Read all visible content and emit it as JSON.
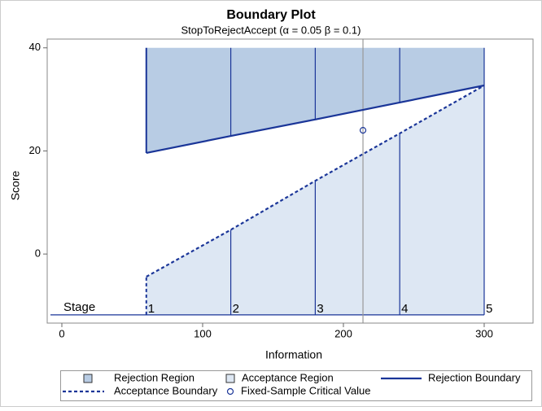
{
  "chart_data": {
    "type": "boundary",
    "title": "Boundary Plot",
    "subtitle": "StopToRejectAccept (α = 0.05  β = 0.1)",
    "xlabel": "Information",
    "ylabel": "Score",
    "xlim": [
      -10.4,
      334.7
    ],
    "ylim": [
      -13.4,
      41.7
    ],
    "xticks": [
      0,
      100,
      200,
      300
    ],
    "yticks": [
      0,
      20,
      40
    ],
    "x": [
      60,
      120,
      180,
      240,
      300
    ],
    "stage_label": "Stage",
    "stages": [
      "1",
      "2",
      "3",
      "4",
      "5"
    ],
    "stage_y": -11.8,
    "regions": [
      {
        "name": "Rejection Region",
        "color": "#b8cce4"
      },
      {
        "name": "Acceptance Region",
        "color": "#dde7f3"
      }
    ],
    "series": [
      {
        "name": "Rejection Boundary",
        "color": "#1a3598",
        "style": "solid",
        "values": [
          19.6,
          22.9,
          26.1,
          29.4,
          32.7
        ]
      },
      {
        "name": "Acceptance Boundary",
        "color": "#1a3598",
        "style": "dashed",
        "values": [
          -4.4,
          4.7,
          14.2,
          23.4,
          32.7
        ]
      }
    ],
    "critical": {
      "name": "Fixed-Sample Critical Value",
      "x": 213.9,
      "y": 24.0,
      "color": "#1a3598"
    }
  }
}
